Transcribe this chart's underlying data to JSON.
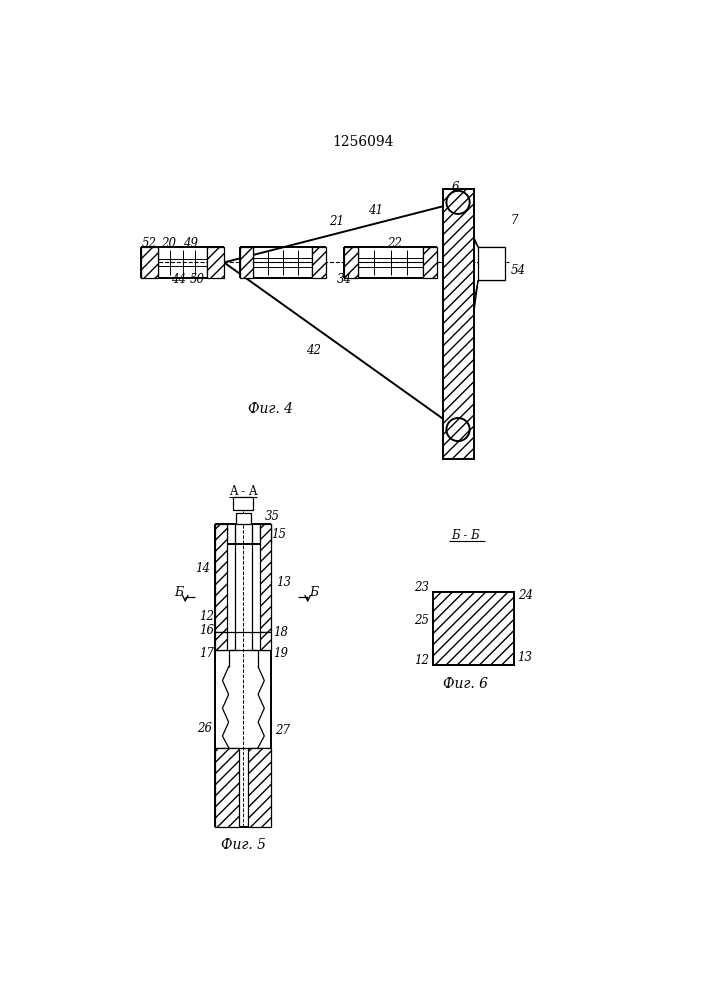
{
  "title": "1256094",
  "bg_color": "#ffffff",
  "fig4_caption": "Фиг. 4",
  "fig5_caption": "Фиг. 5",
  "fig6_caption": "Фиг. 6",
  "fig4": {
    "lbl_6": "6",
    "lbl_7": "7",
    "lbl_21": "21",
    "lbl_41": "41",
    "lbl_22": "22",
    "lbl_52": "52",
    "lbl_20": "20",
    "lbl_49": "49",
    "lbl_44": "44",
    "lbl_50": "50",
    "lbl_34": "34",
    "lbl_42": "42",
    "lbl_54": "54"
  },
  "fig5": {
    "lbl_AA": "A - A",
    "lbl_35": "35",
    "lbl_14": "14",
    "lbl_15": "15",
    "lbl_13": "13",
    "lbl_12": "12",
    "lbl_16": "16",
    "lbl_18": "18",
    "lbl_17": "17",
    "lbl_19": "19",
    "lbl_26": "26",
    "lbl_27": "27",
    "lbl_B": "Б"
  },
  "fig6": {
    "lbl_BB": "Б - Б",
    "lbl_23": "23",
    "lbl_25": "25",
    "lbl_24": "24",
    "lbl_12": "12",
    "lbl_13": "13"
  }
}
